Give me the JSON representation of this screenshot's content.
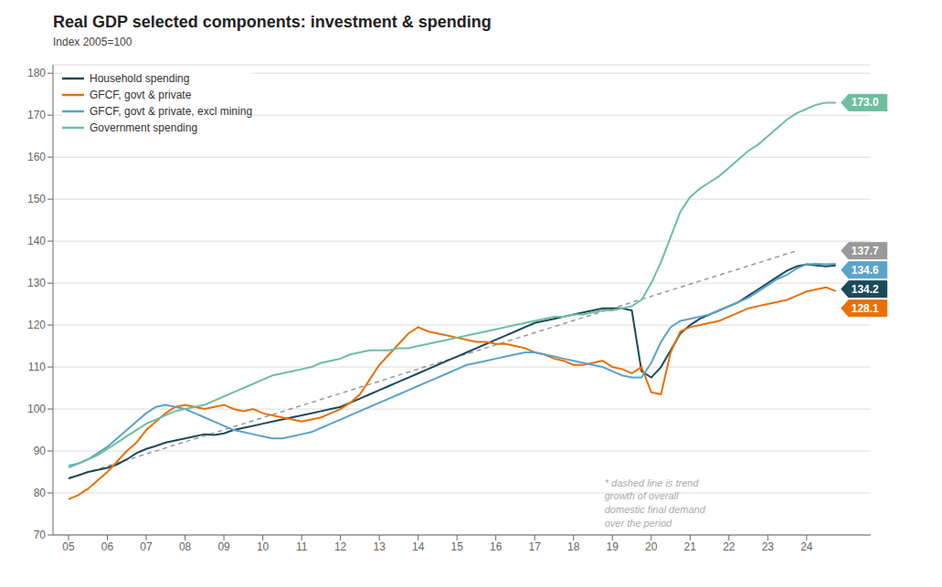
{
  "chart_data": {
    "type": "line",
    "title": "Real GDP selected components: investment & spending",
    "subtitle": "Index 2005=100",
    "x": [
      2005,
      2005.25,
      2005.5,
      2005.75,
      2006,
      2006.25,
      2006.5,
      2006.75,
      2007,
      2007.25,
      2007.5,
      2007.75,
      2008,
      2008.25,
      2008.5,
      2008.75,
      2009,
      2009.25,
      2009.5,
      2009.75,
      2010,
      2010.25,
      2010.5,
      2010.75,
      2011,
      2011.25,
      2011.5,
      2011.75,
      2012,
      2012.25,
      2012.5,
      2012.75,
      2013,
      2013.25,
      2013.5,
      2013.75,
      2014,
      2014.25,
      2014.5,
      2014.75,
      2015,
      2015.25,
      2015.5,
      2015.75,
      2016,
      2016.25,
      2016.5,
      2016.75,
      2017,
      2017.25,
      2017.5,
      2017.75,
      2018,
      2018.25,
      2018.5,
      2018.75,
      2019,
      2019.25,
      2019.5,
      2019.75,
      2020,
      2020.25,
      2020.5,
      2020.75,
      2021,
      2021.25,
      2021.5,
      2021.75,
      2022,
      2022.25,
      2022.5,
      2022.75,
      2023,
      2023.25,
      2023.5,
      2023.75,
      2024,
      2024.25,
      2024.5,
      2024.75
    ],
    "xlim": [
      2004.6,
      2025.65
    ],
    "xticks": [
      {
        "value": 2005,
        "label": "05"
      },
      {
        "value": 2006,
        "label": "06"
      },
      {
        "value": 2007,
        "label": "07"
      },
      {
        "value": 2008,
        "label": "08"
      },
      {
        "value": 2009,
        "label": "09"
      },
      {
        "value": 2010,
        "label": "10"
      },
      {
        "value": 2011,
        "label": "11"
      },
      {
        "value": 2012,
        "label": "12"
      },
      {
        "value": 2013,
        "label": "13"
      },
      {
        "value": 2014,
        "label": "14"
      },
      {
        "value": 2015,
        "label": "15"
      },
      {
        "value": 2016,
        "label": "16"
      },
      {
        "value": 2017,
        "label": "17"
      },
      {
        "value": 2018,
        "label": "18"
      },
      {
        "value": 2019,
        "label": "19"
      },
      {
        "value": 2020,
        "label": "20"
      },
      {
        "value": 2021,
        "label": "21"
      },
      {
        "value": 2022,
        "label": "22"
      },
      {
        "value": 2023,
        "label": "23"
      },
      {
        "value": 2024,
        "label": "24"
      }
    ],
    "ylim": [
      70,
      182
    ],
    "yticks": [
      70,
      80,
      90,
      100,
      110,
      120,
      130,
      140,
      150,
      160,
      170,
      180
    ],
    "grid": true,
    "legend": "upper left",
    "series": [
      {
        "name": "Household spending",
        "color": "#1b4a5a",
        "values": [
          83.5,
          84.2,
          85.0,
          85.5,
          86.0,
          86.8,
          88.0,
          89.5,
          90.5,
          91.2,
          92.0,
          92.5,
          93.0,
          93.5,
          94.0,
          93.8,
          94.2,
          95.0,
          95.5,
          96.0,
          96.5,
          97.0,
          97.5,
          98.0,
          98.5,
          99.0,
          99.5,
          100.0,
          100.5,
          101.5,
          102.5,
          103.5,
          104.5,
          105.5,
          106.5,
          107.5,
          108.5,
          109.5,
          110.5,
          111.5,
          112.5,
          113.5,
          114.5,
          115.5,
          116.5,
          117.5,
          118.5,
          119.5,
          120.5,
          121.0,
          121.5,
          122.0,
          122.5,
          123.0,
          123.5,
          124.0,
          124.0,
          124.0,
          123.5,
          109.0,
          107.5,
          110.0,
          114.0,
          118.0,
          120.0,
          121.5,
          122.5,
          123.5,
          124.5,
          125.5,
          127.0,
          128.5,
          130.0,
          131.5,
          133.0,
          134.0,
          134.5,
          134.2,
          134.0,
          134.2
        ]
      },
      {
        "name": "GFCF, govt & private",
        "color": "#e8700a",
        "values": [
          78.5,
          79.5,
          81.0,
          83.0,
          85.0,
          87.5,
          90.0,
          92.0,
          95.0,
          97.0,
          99.0,
          100.5,
          101.0,
          100.5,
          100.0,
          100.5,
          101.0,
          100.0,
          99.5,
          100.0,
          99.0,
          98.5,
          98.0,
          97.5,
          97.0,
          97.5,
          98.0,
          99.0,
          100.0,
          101.5,
          103.5,
          107.0,
          110.5,
          113.0,
          115.5,
          118.0,
          119.5,
          118.5,
          118.0,
          117.5,
          117.0,
          116.5,
          116.0,
          116.0,
          115.5,
          115.5,
          115.0,
          114.5,
          113.5,
          113.0,
          112.0,
          111.5,
          110.5,
          110.5,
          111.0,
          111.5,
          110.0,
          109.5,
          108.5,
          110.0,
          104.0,
          103.5,
          113.5,
          118.5,
          119.5,
          120.0,
          120.5,
          121.0,
          122.0,
          123.0,
          124.0,
          124.5,
          125.0,
          125.5,
          126.0,
          127.0,
          128.0,
          128.5,
          129.0,
          128.1
        ]
      },
      {
        "name": "GFCF, govt & private, excl mining",
        "color": "#5ba3c9",
        "values": [
          86.5,
          87.0,
          88.0,
          89.5,
          91.0,
          93.0,
          95.0,
          97.0,
          99.0,
          100.5,
          101.0,
          100.5,
          100.0,
          99.0,
          98.0,
          97.0,
          96.0,
          95.0,
          94.5,
          94.0,
          93.5,
          93.0,
          93.0,
          93.5,
          94.0,
          94.5,
          95.5,
          96.5,
          97.5,
          98.5,
          99.5,
          100.5,
          101.5,
          102.5,
          103.5,
          104.5,
          105.5,
          106.5,
          107.5,
          108.5,
          109.5,
          110.5,
          111.0,
          111.5,
          112.0,
          112.5,
          113.0,
          113.5,
          113.5,
          113.0,
          112.5,
          112.0,
          111.5,
          111.0,
          110.5,
          110.0,
          109.0,
          108.0,
          107.5,
          107.5,
          111.0,
          116.0,
          119.5,
          121.0,
          121.5,
          122.0,
          122.5,
          123.5,
          124.5,
          125.5,
          126.5,
          128.0,
          129.5,
          131.0,
          132.0,
          133.5,
          134.5,
          134.6,
          134.5,
          134.6
        ]
      },
      {
        "name": "Government spending",
        "color": "#6dbf9e",
        "values": [
          86.0,
          87.0,
          88.0,
          89.0,
          90.5,
          92.0,
          93.5,
          95.0,
          96.5,
          97.5,
          98.5,
          99.5,
          100.0,
          100.5,
          101.0,
          102.0,
          103.0,
          104.0,
          105.0,
          106.0,
          107.0,
          108.0,
          108.5,
          109.0,
          109.5,
          110.0,
          111.0,
          111.5,
          112.0,
          113.0,
          113.5,
          114.0,
          114.0,
          114.0,
          114.5,
          114.5,
          115.0,
          115.5,
          116.0,
          116.5,
          117.0,
          117.5,
          118.0,
          118.5,
          119.0,
          119.5,
          120.0,
          120.5,
          121.0,
          121.5,
          122.0,
          122.0,
          122.5,
          122.5,
          123.0,
          123.5,
          123.5,
          124.0,
          124.5,
          126.0,
          130.0,
          135.0,
          141.0,
          147.0,
          150.5,
          152.5,
          154.0,
          155.5,
          157.5,
          159.5,
          161.5,
          163.0,
          165.0,
          167.0,
          169.0,
          170.5,
          171.5,
          172.5,
          173.0,
          173.0
        ]
      }
    ],
    "trend": {
      "x": [
        2005.0,
        2023.75
      ],
      "values": [
        83.5,
        137.7
      ],
      "color": "#999999",
      "line_style": "dashed"
    },
    "annotations": [
      {
        "text": "173.0",
        "value": 173.0,
        "color": "#6dbf9e"
      },
      {
        "text": "137.7",
        "value": 137.7,
        "color": "#999999"
      },
      {
        "text": "134.6",
        "value": 134.6,
        "color": "#5ba3c9"
      },
      {
        "text": "134.2",
        "value": 134.2,
        "color": "#1b4a5a"
      },
      {
        "text": "128.1",
        "value": 128.1,
        "color": "#e8700a"
      },
      {
        "text": "* dashed line is trend\ngrowth of overall\ndomestic final demand\nover the period",
        "x": 2018.8,
        "y": 84.0,
        "color": "#aaaaaa"
      }
    ]
  }
}
